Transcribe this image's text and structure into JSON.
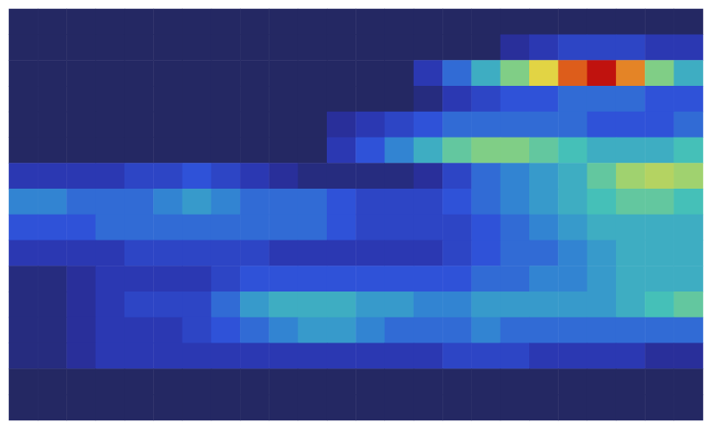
{
  "chart_data": {
    "type": "heatmap",
    "tick_labels": false,
    "grid": false,
    "value_range": [
      0,
      1
    ],
    "cells": [
      [
        0,
        0,
        0,
        0,
        0,
        0,
        0,
        0,
        0,
        0,
        0,
        0,
        0,
        0,
        0,
        0,
        0,
        0,
        0,
        0,
        0,
        0,
        0,
        0
      ],
      [
        0,
        0,
        0,
        0,
        0,
        0,
        0,
        0,
        0,
        0,
        0,
        0,
        0,
        0,
        0,
        0,
        0,
        0.1,
        0.15,
        0.2,
        0.2,
        0.2,
        0.15,
        0.15
      ],
      [
        0,
        0,
        0,
        0,
        0,
        0,
        0,
        0,
        0,
        0,
        0,
        0,
        0,
        0,
        0.15,
        0.3,
        0.45,
        0.6,
        0.75,
        0.9,
        1.0,
        0.85,
        0.6,
        0.45
      ],
      [
        0,
        0,
        0,
        0,
        0,
        0,
        0,
        0,
        0,
        0,
        0,
        0,
        0,
        0,
        0.05,
        0.15,
        0.2,
        0.25,
        0.25,
        0.3,
        0.3,
        0.3,
        0.25,
        0.25
      ],
      [
        0,
        0,
        0,
        0,
        0,
        0,
        0,
        0,
        0,
        0,
        0,
        0.1,
        0.15,
        0.2,
        0.25,
        0.3,
        0.3,
        0.3,
        0.3,
        0.3,
        0.25,
        0.25,
        0.25,
        0.3
      ],
      [
        0,
        0,
        0,
        0,
        0,
        0,
        0,
        0,
        0,
        0,
        0,
        0.15,
        0.25,
        0.35,
        0.45,
        0.55,
        0.6,
        0.6,
        0.55,
        0.5,
        0.45,
        0.45,
        0.45,
        0.5
      ],
      [
        0.15,
        0.15,
        0.15,
        0.15,
        0.2,
        0.2,
        0.25,
        0.2,
        0.15,
        0.1,
        0.05,
        0.05,
        0.05,
        0.05,
        0.1,
        0.2,
        0.3,
        0.35,
        0.4,
        0.45,
        0.55,
        0.65,
        0.68,
        0.65
      ],
      [
        0.35,
        0.35,
        0.3,
        0.3,
        0.3,
        0.35,
        0.4,
        0.35,
        0.3,
        0.3,
        0.3,
        0.25,
        0.2,
        0.2,
        0.2,
        0.25,
        0.3,
        0.35,
        0.4,
        0.45,
        0.5,
        0.55,
        0.55,
        0.5
      ],
      [
        0.25,
        0.25,
        0.25,
        0.3,
        0.3,
        0.3,
        0.3,
        0.3,
        0.3,
        0.3,
        0.3,
        0.25,
        0.2,
        0.2,
        0.2,
        0.2,
        0.25,
        0.3,
        0.35,
        0.4,
        0.45,
        0.45,
        0.45,
        0.45
      ],
      [
        0.15,
        0.15,
        0.15,
        0.15,
        0.2,
        0.2,
        0.2,
        0.2,
        0.2,
        0.15,
        0.15,
        0.15,
        0.15,
        0.15,
        0.15,
        0.2,
        0.25,
        0.3,
        0.3,
        0.35,
        0.4,
        0.45,
        0.45,
        0.45
      ],
      [
        0.05,
        0.05,
        0.1,
        0.15,
        0.15,
        0.15,
        0.15,
        0.2,
        0.25,
        0.25,
        0.25,
        0.25,
        0.25,
        0.25,
        0.25,
        0.25,
        0.3,
        0.3,
        0.35,
        0.35,
        0.4,
        0.45,
        0.45,
        0.45
      ],
      [
        0.05,
        0.05,
        0.1,
        0.15,
        0.2,
        0.2,
        0.2,
        0.3,
        0.4,
        0.45,
        0.45,
        0.45,
        0.4,
        0.4,
        0.35,
        0.35,
        0.4,
        0.4,
        0.4,
        0.4,
        0.4,
        0.45,
        0.5,
        0.55
      ],
      [
        0.05,
        0.05,
        0.1,
        0.15,
        0.15,
        0.15,
        0.2,
        0.25,
        0.3,
        0.35,
        0.4,
        0.4,
        0.35,
        0.3,
        0.3,
        0.3,
        0.35,
        0.3,
        0.3,
        0.3,
        0.3,
        0.3,
        0.3,
        0.3
      ],
      [
        0.05,
        0.05,
        0.1,
        0.15,
        0.15,
        0.15,
        0.15,
        0.15,
        0.15,
        0.15,
        0.15,
        0.15,
        0.15,
        0.15,
        0.15,
        0.2,
        0.2,
        0.2,
        0.15,
        0.15,
        0.15,
        0.15,
        0.1,
        0.1
      ],
      [
        0,
        0,
        0,
        0,
        0,
        0,
        0,
        0,
        0,
        0,
        0,
        0,
        0,
        0,
        0,
        0,
        0,
        0,
        0,
        0,
        0,
        0,
        0,
        0
      ],
      [
        0,
        0,
        0,
        0,
        0,
        0,
        0,
        0,
        0,
        0,
        0,
        0,
        0,
        0,
        0,
        0,
        0,
        0,
        0,
        0,
        0,
        0,
        0,
        0
      ]
    ]
  }
}
